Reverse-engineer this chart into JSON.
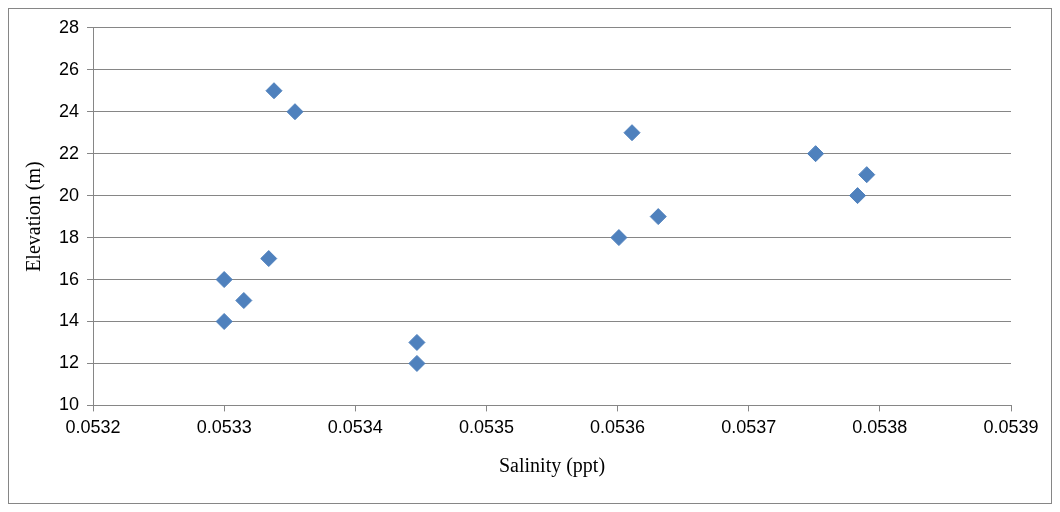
{
  "chart_data": {
    "type": "scatter",
    "xlabel": "Salinity (ppt)",
    "ylabel": "Elevation (m)",
    "marker": "diamond",
    "grid": "y",
    "legend": false,
    "xlim": [
      0.0532,
      0.0539
    ],
    "xticks": [
      0.0532,
      0.0533,
      0.0534,
      0.0535,
      0.0536,
      0.0537,
      0.0538,
      0.0539
    ],
    "ylim": [
      10,
      28
    ],
    "yticks": [
      10,
      12,
      14,
      16,
      18,
      20,
      22,
      24,
      26,
      28
    ],
    "series": [
      {
        "color": "#4f81bd",
        "x": [
          0.0533,
          0.0533,
          0.053315,
          0.053334,
          0.053338,
          0.053354,
          0.053447,
          0.053447,
          0.053601,
          0.053611,
          0.053631,
          0.053751,
          0.053783,
          0.05379
        ],
        "values": [
          16,
          14,
          15,
          17,
          25,
          24,
          13,
          12,
          18,
          23,
          19,
          22,
          20,
          21
        ]
      }
    ]
  }
}
